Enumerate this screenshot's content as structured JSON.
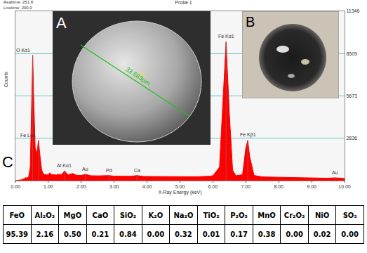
{
  "chart_data": {
    "type": "area",
    "title": "Probe 1",
    "subtitle": [
      "Realtime: 251.8",
      "Livetime: 200.0"
    ],
    "x_label": "X-Ray Energy (keV)",
    "y_label": "Counts",
    "x": [
      0.0,
      0.1,
      0.2,
      0.28,
      0.3,
      0.35,
      0.4,
      0.45,
      0.5,
      0.525,
      0.55,
      0.6,
      0.65,
      0.7,
      0.75,
      0.8,
      0.85,
      0.9,
      1.0,
      1.04,
      1.1,
      1.25,
      1.3,
      1.4,
      1.49,
      1.6,
      1.74,
      1.85,
      2.0,
      2.12,
      2.3,
      2.5,
      2.84,
      3.0,
      3.5,
      3.69,
      3.9,
      4.5,
      5.0,
      5.5,
      5.9,
      6.0,
      6.2,
      6.3,
      6.4,
      6.5,
      6.6,
      6.7,
      6.9,
      7.0,
      7.06,
      7.12,
      7.25,
      7.5,
      8.0,
      8.5,
      9.0,
      9.5,
      9.71,
      10.0
    ],
    "values": [
      0,
      20,
      60,
      150,
      200,
      180,
      250,
      900,
      6500,
      8400,
      6000,
      2200,
      1800,
      2700,
      1600,
      700,
      450,
      400,
      380,
      520,
      400,
      380,
      420,
      390,
      650,
      380,
      480,
      360,
      350,
      420,
      330,
      320,
      340,
      300,
      290,
      340,
      280,
      270,
      260,
      260,
      300,
      330,
      900,
      5200,
      9300,
      4500,
      700,
      330,
      400,
      2200,
      2700,
      1600,
      350,
      250,
      230,
      200,
      180,
      160,
      190,
      140
    ],
    "color": "#ff0000",
    "xlim": [
      0,
      10
    ],
    "xticks": [
      {
        "value": 0,
        "label": "0.00"
      },
      {
        "value": 1,
        "label": "1.00"
      },
      {
        "value": 2,
        "label": "2.00"
      },
      {
        "value": 3,
        "label": "3.00"
      },
      {
        "value": 4,
        "label": "4.00"
      },
      {
        "value": 5,
        "label": "5.00"
      },
      {
        "value": 6,
        "label": "6.00"
      },
      {
        "value": 7,
        "label": "7.00"
      },
      {
        "value": 8,
        "label": "8.00"
      },
      {
        "value": 9,
        "label": "9.00"
      },
      {
        "value": 10,
        "label": "10.00"
      }
    ],
    "ylim": [
      0,
      11346
    ],
    "yticks": [
      2836,
      5673,
      8509,
      11346
    ],
    "grid": true,
    "annotations": [
      {
        "text": "O Kα1",
        "x": 0.525
      },
      {
        "text": "Fe Lα1",
        "x": 0.7
      },
      {
        "text": "Al Kα1",
        "x": 1.49
      },
      {
        "text": "Au",
        "x": 2.12
      },
      {
        "text": "Pd",
        "x": 2.84
      },
      {
        "text": "Ca",
        "x": 3.69
      },
      {
        "text": "Fe Kα1",
        "x": 6.4
      },
      {
        "text": "Fe Kβ1",
        "x": 7.06
      },
      {
        "text": "Au",
        "x": 9.71
      }
    ]
  },
  "panels": [
    {
      "label": "A",
      "scale_bar": "33.683µm"
    },
    {
      "label": "B"
    },
    {
      "label": "C"
    }
  ],
  "table": {
    "header": [
      "FeO",
      "Al₂O₃",
      "MgO",
      "CaO",
      "SiO₂",
      "K₂O",
      "Na₂O",
      "TiO₂",
      "P₂O₅",
      "MnO",
      "Cr₂O₃",
      "NiO",
      "SO₃"
    ],
    "rows": [
      [
        "95.39",
        "2.16",
        "0.50",
        "0.21",
        "0.84",
        "0.00",
        "0.32",
        "0.01",
        "0.17",
        "0.38",
        "0.00",
        "0.02",
        "0.00"
      ]
    ]
  }
}
